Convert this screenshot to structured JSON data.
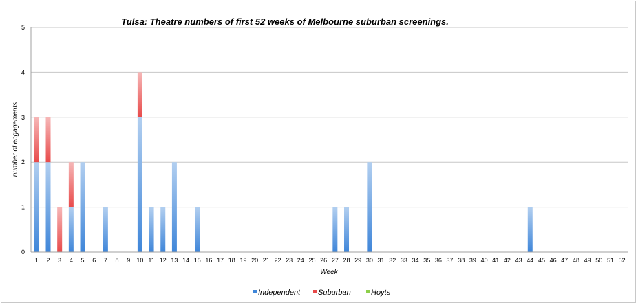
{
  "chart_data": {
    "type": "bar",
    "stacked": true,
    "title": "Tulsa: Theatre numbers of first 52 weeks of Melbourne suburban screenings.",
    "xlabel": "Week",
    "ylabel": "number of engagements",
    "ylim": [
      0,
      5
    ],
    "yticks": [
      "0",
      "1",
      "2",
      "3",
      "4",
      "5"
    ],
    "grid": true,
    "legend_position": "bottom",
    "categories": [
      "1",
      "2",
      "3",
      "4",
      "5",
      "6",
      "7",
      "8",
      "9",
      "10",
      "11",
      "12",
      "13",
      "14",
      "15",
      "16",
      "17",
      "18",
      "19",
      "20",
      "21",
      "22",
      "23",
      "24",
      "25",
      "26",
      "27",
      "28",
      "29",
      "30",
      "31",
      "32",
      "33",
      "34",
      "35",
      "36",
      "37",
      "38",
      "39",
      "40",
      "41",
      "42",
      "43",
      "44",
      "45",
      "46",
      "47",
      "48",
      "49",
      "50",
      "51",
      "52"
    ],
    "series": [
      {
        "name": "Independent",
        "color": "#3f86d9",
        "values": [
          2,
          2,
          0,
          1,
          2,
          0,
          1,
          0,
          0,
          3,
          1,
          1,
          2,
          0,
          1,
          0,
          0,
          0,
          0,
          0,
          0,
          0,
          0,
          0,
          0,
          0,
          1,
          1,
          0,
          2,
          0,
          0,
          0,
          0,
          0,
          0,
          0,
          0,
          0,
          0,
          0,
          0,
          0,
          1,
          0,
          0,
          0,
          0,
          0,
          0,
          0,
          0
        ]
      },
      {
        "name": "Suburban",
        "color": "#e84a4a",
        "values": [
          1,
          1,
          1,
          1,
          0,
          0,
          0,
          0,
          0,
          1,
          0,
          0,
          0,
          0,
          0,
          0,
          0,
          0,
          0,
          0,
          0,
          0,
          0,
          0,
          0,
          0,
          0,
          0,
          0,
          0,
          0,
          0,
          0,
          0,
          0,
          0,
          0,
          0,
          0,
          0,
          0,
          0,
          0,
          0,
          0,
          0,
          0,
          0,
          0,
          0,
          0,
          0
        ]
      },
      {
        "name": "Hoyts",
        "color": "#8dcf4a",
        "values": [
          0,
          0,
          0,
          0,
          0,
          0,
          0,
          0,
          0,
          0,
          0,
          0,
          0,
          0,
          0,
          0,
          0,
          0,
          0,
          0,
          0,
          0,
          0,
          0,
          0,
          0,
          0,
          0,
          0,
          0,
          0,
          0,
          0,
          0,
          0,
          0,
          0,
          0,
          0,
          0,
          0,
          0,
          0,
          0,
          0,
          0,
          0,
          0,
          0,
          0,
          0,
          0
        ]
      }
    ]
  }
}
